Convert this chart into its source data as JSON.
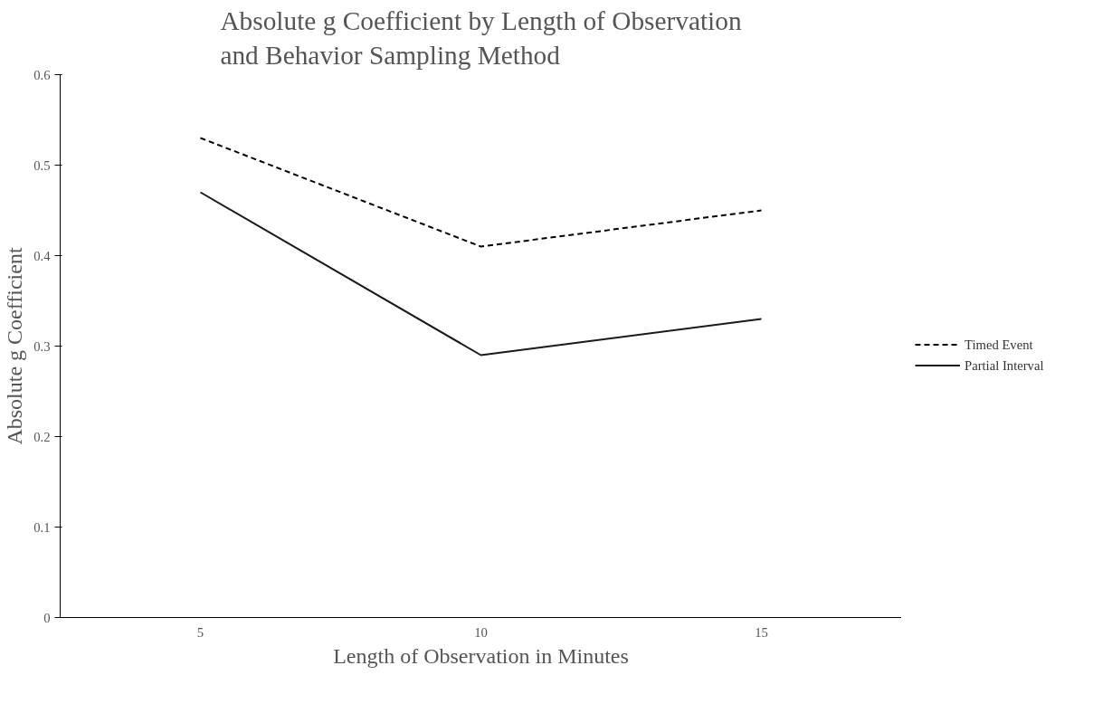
{
  "chart_data": {
    "type": "line",
    "title": "Absolute g Coefficient by Length of Observation\nand Behavior Sampling Method",
    "xlabel": "Length of Observation in Minutes",
    "ylabel": "Absolute g Coefficient",
    "categories": [
      "5",
      "10",
      "15"
    ],
    "ylim": [
      0,
      0.6
    ],
    "yticks": [
      0,
      0.1,
      0.2,
      0.3,
      0.4,
      0.5,
      0.6
    ],
    "grid": false,
    "legend": "right",
    "marker": "none",
    "series": [
      {
        "name": "Timed Event",
        "color": "#000000",
        "line_style": "dashed",
        "values": [
          0.53,
          0.41,
          0.45
        ]
      },
      {
        "name": "Partial Interval",
        "color": "#1a1a1a",
        "line_style": "solid",
        "values": [
          0.47,
          0.29,
          0.33
        ]
      }
    ]
  }
}
